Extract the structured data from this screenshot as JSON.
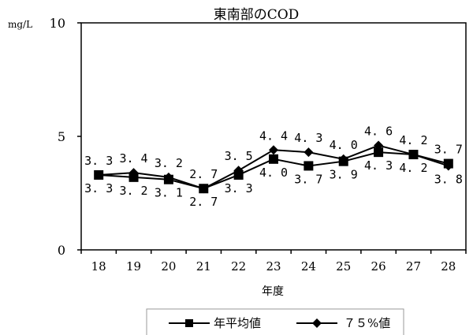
{
  "chart_data": {
    "type": "line",
    "title": "東南部のCOD",
    "ylabel": "mg/L",
    "xlabel": "年度",
    "categories": [
      "18",
      "19",
      "20",
      "21",
      "22",
      "23",
      "24",
      "25",
      "26",
      "27",
      "28"
    ],
    "ylim": [
      0,
      10
    ],
    "yticks": [
      0,
      5,
      10
    ],
    "grid": false,
    "legend_position": "bottom",
    "series": [
      {
        "name": "年平均値",
        "marker": "square",
        "values": [
          3.3,
          3.2,
          3.1,
          2.7,
          3.3,
          4.0,
          3.7,
          3.9,
          4.3,
          4.2,
          3.8
        ],
        "labels": [
          "3.3",
          "3.2",
          "3.1",
          "2.7",
          "3.3",
          "4.0",
          "3.7",
          "3.9",
          "4.3",
          "4.2",
          "3.8"
        ]
      },
      {
        "name": "75%値",
        "marker": "diamond",
        "values": [
          3.3,
          3.4,
          3.2,
          2.7,
          3.5,
          4.4,
          4.3,
          4.0,
          4.6,
          4.2,
          3.7
        ],
        "labels": [
          "3.3",
          "3.4",
          "3.2",
          "2.7",
          "3.5",
          "4.4",
          "4.3",
          "4.0",
          "4.6",
          "4.2",
          "3.7"
        ]
      }
    ],
    "legend_labels": [
      "年平均値",
      "７５%値"
    ],
    "colors": {
      "line": "#000000"
    }
  }
}
